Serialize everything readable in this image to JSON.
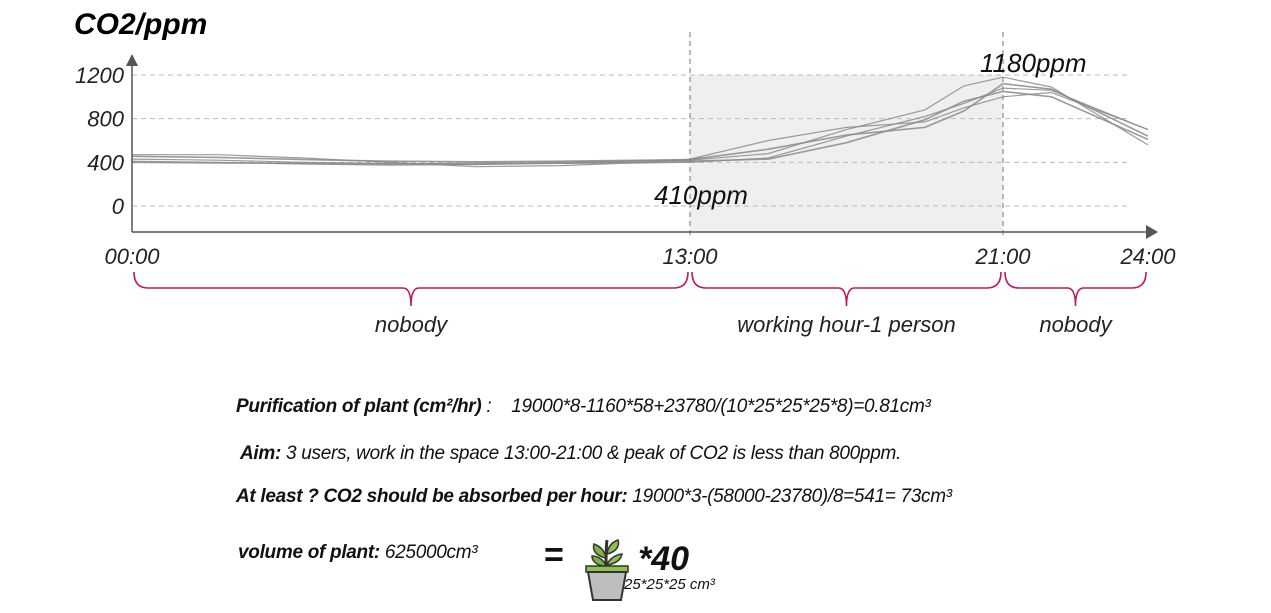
{
  "chart_data": {
    "type": "line",
    "title": "CO2/ppm",
    "ylabel": "CO2/ppm",
    "yticks": [
      "1200",
      "800",
      "400",
      "0"
    ],
    "ytick_values": [
      1200,
      800,
      400,
      0
    ],
    "xticks": [
      "00:00",
      "13:00",
      "21:00",
      "24:00"
    ],
    "xtick_values": [
      0,
      13,
      21,
      24
    ],
    "ylim": [
      -100,
      1250
    ],
    "xlim": [
      0,
      24
    ],
    "grid": "horizontal dashed",
    "highlight_range": [
      13,
      21
    ],
    "annotations": [
      {
        "text": "410ppm",
        "x": 13,
        "y": 410
      },
      {
        "text": "1180ppm",
        "x": 21,
        "y": 1180
      }
    ],
    "segments": [
      {
        "label": "nobody",
        "from": 0,
        "to": 13
      },
      {
        "label": "working hour-1 person",
        "from": 13,
        "to": 21
      },
      {
        "label": "nobody",
        "from": 21,
        "to": 24
      }
    ],
    "series": [
      {
        "x": [
          0,
          2,
          4,
          6,
          8,
          10,
          12,
          13,
          15,
          17,
          19,
          20,
          21,
          22,
          24
        ],
        "values": [
          430,
          420,
          400,
          390,
          380,
          390,
          395,
          400,
          440,
          640,
          820,
          940,
          1080,
          1060,
          700
        ]
      },
      {
        "x": [
          0,
          2,
          4,
          6,
          8,
          10,
          12,
          13,
          15,
          17,
          19,
          20,
          21,
          22,
          24
        ],
        "values": [
          455,
          445,
          425,
          410,
          405,
          410,
          420,
          425,
          520,
          650,
          720,
          870,
          1120,
          1070,
          640
        ]
      },
      {
        "x": [
          0,
          2,
          4,
          6,
          8,
          10,
          12,
          13,
          15,
          17,
          19,
          20,
          21,
          22,
          24
        ],
        "values": [
          410,
          400,
          385,
          375,
          380,
          400,
          415,
          420,
          480,
          700,
          880,
          1100,
          1180,
          1090,
          560
        ]
      },
      {
        "x": [
          0,
          2,
          4,
          6,
          8,
          10,
          12,
          13,
          15,
          17,
          19,
          20,
          21,
          22,
          24
        ],
        "values": [
          400,
          395,
          390,
          385,
          390,
          395,
          405,
          410,
          430,
          580,
          790,
          960,
          1050,
          1000,
          610
        ]
      },
      {
        "x": [
          0,
          2,
          4,
          6,
          8,
          10,
          12,
          13,
          15,
          17,
          19,
          20,
          21,
          22,
          24
        ],
        "values": [
          470,
          470,
          440,
          400,
          360,
          370,
          400,
          430,
          600,
          720,
          770,
          900,
          1000,
          1040,
          700
        ]
      }
    ]
  },
  "notes": {
    "purification_label": "Purification of plant  (cm²/hr)",
    "purification_colon": " :",
    "purification_formula": "19000*8-1160*58+23780/(10*25*25*25*8)=0.81cm³",
    "aim_label": "Aim:",
    "aim_text": " 3 users, work in the space 13:00-21:00  &  peak of CO2 is less than 800ppm.",
    "atleast_label": "At least ? CO2 should be absorbed per hour:",
    "atleast_formula": " 19000*3-(58000-23780)/8=541= 73cm³",
    "volume_label": "volume of plant:",
    "volume_value": " 625000cm³",
    "equals": "=",
    "multiplier": "*40",
    "pot_size": "25*25*25 cm³",
    "plant_icon": "potted-plant-icon"
  },
  "colors": {
    "series_line": "#8a8a8a",
    "highlight": "#efefed",
    "brace": "#c2185b",
    "axis": "#555555",
    "grid": "#bbbbbb"
  }
}
